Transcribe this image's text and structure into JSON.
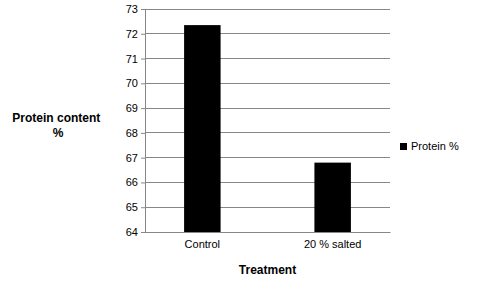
{
  "chart_data": {
    "type": "bar",
    "x_label": "Treatment",
    "y_label": "Protein content %",
    "categories": [
      "Control",
      "20 % salted"
    ],
    "series": [
      {
        "name": "Protein %",
        "color": "#000000",
        "values": [
          72.35,
          66.8
        ]
      }
    ],
    "ylim": [
      64,
      73
    ],
    "yticks": [
      64,
      65,
      66,
      67,
      68,
      69,
      70,
      71,
      72,
      73
    ],
    "grid": true,
    "legend": "right"
  }
}
